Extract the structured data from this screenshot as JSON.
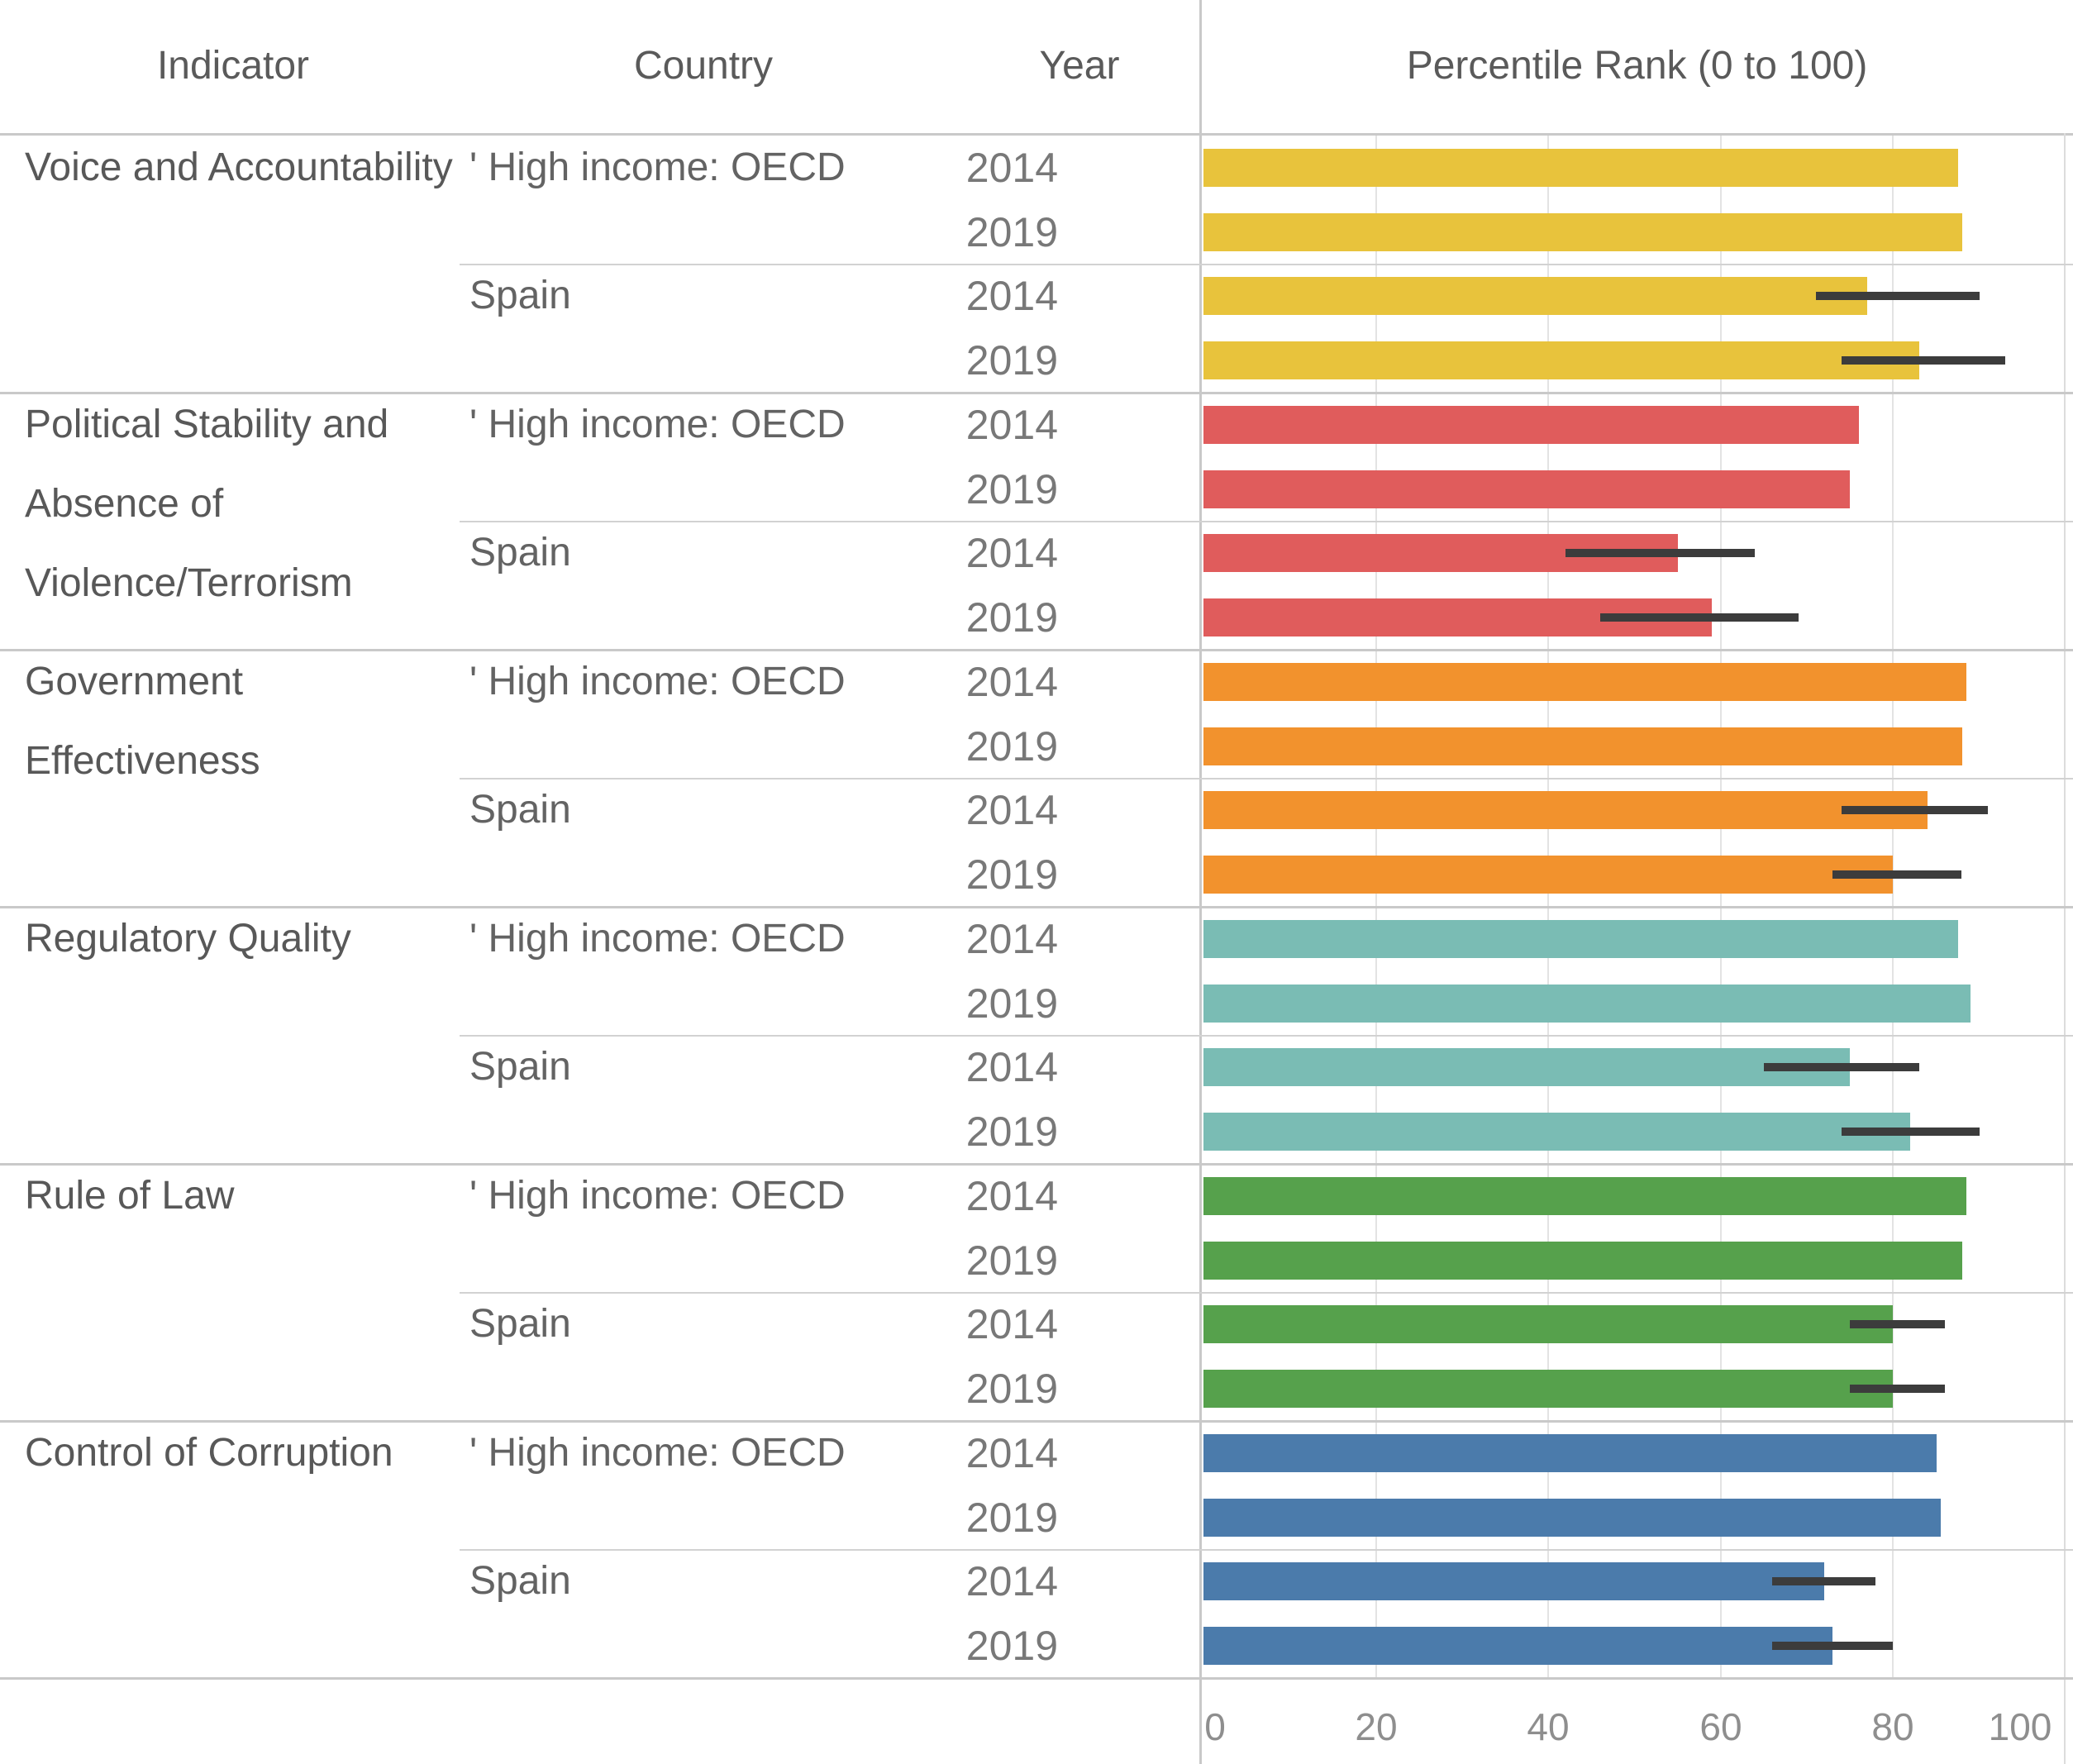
{
  "table": {
    "headers": {
      "indicator": "Indicator",
      "country": "Country",
      "year": "Year",
      "chart": "Percentile Rank (0 to 100)"
    }
  },
  "colors": {
    "voice_and_accountability": "#e8c33c",
    "political_stability": "#e05c5c",
    "government_effectiveness": "#f2922d",
    "regulatory_quality": "#7abcb4",
    "rule_of_law": "#56a14c",
    "control_of_corruption": "#4b7bab",
    "error_bar": "#3c3c3c",
    "gridline": "#e3e3e3",
    "separator": "#c9c9c9"
  },
  "chart_data": {
    "type": "bar",
    "orientation": "horizontal",
    "title": "Percentile Rank (0 to 100)",
    "xlabel": "Percentile Rank (0 to 100)",
    "ylabel": "",
    "xlim": [
      0,
      100
    ],
    "x_ticks": [
      0,
      20,
      40,
      60,
      80,
      100
    ],
    "grid": "vertical gridlines every 20 units",
    "legend": "none",
    "error_bars": "black horizontal standard-error ranges shown on Spain rows only",
    "indicators": [
      {
        "indicator": "Voice and Accountability",
        "lines": [
          "Voice and Accountability"
        ],
        "color": "#e8c33c",
        "groups": [
          {
            "country": "' High income: OECD",
            "rows": [
              {
                "year": "2014",
                "value": 87.5
              },
              {
                "year": "2019",
                "value": 88
              }
            ]
          },
          {
            "country": "Spain",
            "rows": [
              {
                "year": "2014",
                "value": 77,
                "err_lo": 71,
                "err_hi": 90
              },
              {
                "year": "2019",
                "value": 83,
                "err_lo": 74,
                "err_hi": 93
              }
            ]
          }
        ]
      },
      {
        "indicator": "Political Stability and Absence of Violence/Terrorism",
        "lines": [
          "Political Stability and",
          "Absence of",
          "Violence/Terrorism"
        ],
        "color": "#e05c5c",
        "groups": [
          {
            "country": "' High income: OECD",
            "rows": [
              {
                "year": "2014",
                "value": 76
              },
              {
                "year": "2019",
                "value": 75
              }
            ]
          },
          {
            "country": "Spain",
            "rows": [
              {
                "year": "2014",
                "value": 55,
                "err_lo": 42,
                "err_hi": 64
              },
              {
                "year": "2019",
                "value": 59,
                "err_lo": 46,
                "err_hi": 69
              }
            ]
          }
        ]
      },
      {
        "indicator": "Government Effectiveness",
        "lines": [
          "Government",
          "Effectiveness"
        ],
        "color": "#f2922d",
        "groups": [
          {
            "country": "' High income: OECD",
            "rows": [
              {
                "year": "2014",
                "value": 88.5
              },
              {
                "year": "2019",
                "value": 88
              }
            ]
          },
          {
            "country": "Spain",
            "rows": [
              {
                "year": "2014",
                "value": 84,
                "err_lo": 74,
                "err_hi": 91
              },
              {
                "year": "2019",
                "value": 80,
                "err_lo": 73,
                "err_hi": 88
              }
            ]
          }
        ]
      },
      {
        "indicator": "Regulatory Quality",
        "lines": [
          "Regulatory Quality"
        ],
        "color": "#7abcb4",
        "groups": [
          {
            "country": "' High income: OECD",
            "rows": [
              {
                "year": "2014",
                "value": 87.5
              },
              {
                "year": "2019",
                "value": 89
              }
            ]
          },
          {
            "country": "Spain",
            "rows": [
              {
                "year": "2014",
                "value": 75,
                "err_lo": 65,
                "err_hi": 83
              },
              {
                "year": "2019",
                "value": 82,
                "err_lo": 74,
                "err_hi": 90
              }
            ]
          }
        ]
      },
      {
        "indicator": "Rule of Law",
        "lines": [
          "Rule of Law"
        ],
        "color": "#56a14c",
        "groups": [
          {
            "country": "' High income: OECD",
            "rows": [
              {
                "year": "2014",
                "value": 88.5
              },
              {
                "year": "2019",
                "value": 88
              }
            ]
          },
          {
            "country": "Spain",
            "rows": [
              {
                "year": "2014",
                "value": 80,
                "err_lo": 75,
                "err_hi": 86
              },
              {
                "year": "2019",
                "value": 80,
                "err_lo": 75,
                "err_hi": 86
              }
            ]
          }
        ]
      },
      {
        "indicator": "Control of Corruption",
        "lines": [
          "Control of Corruption"
        ],
        "color": "#4b7bab",
        "groups": [
          {
            "country": "' High income: OECD",
            "rows": [
              {
                "year": "2014",
                "value": 85
              },
              {
                "year": "2019",
                "value": 85.5
              }
            ]
          },
          {
            "country": "Spain",
            "rows": [
              {
                "year": "2014",
                "value": 72,
                "err_lo": 66,
                "err_hi": 78
              },
              {
                "year": "2019",
                "value": 73,
                "err_lo": 66,
                "err_hi": 80
              }
            ]
          }
        ]
      }
    ]
  }
}
